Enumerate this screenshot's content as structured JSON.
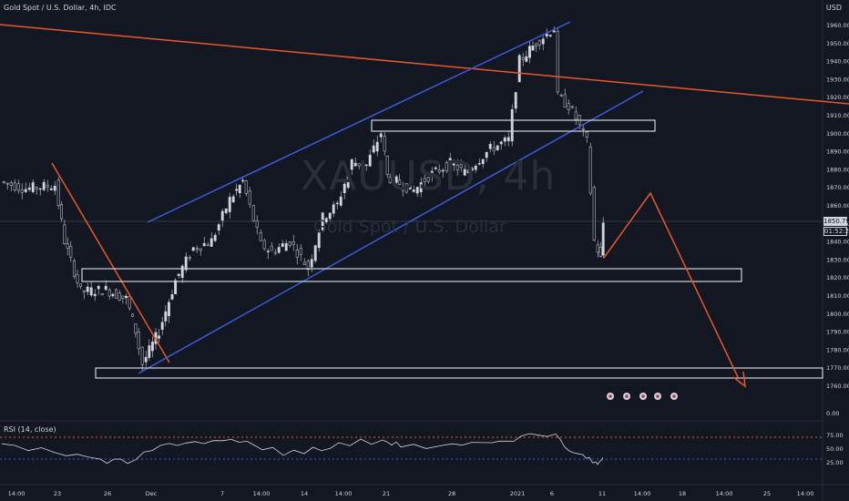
{
  "header": {
    "title": "Gold Spot / U.S. Dollar, 4h, IDC",
    "currency": "USD",
    "rsi_label": "RSI (14, close)"
  },
  "watermark": {
    "symbol": "XAUUSD, 4h",
    "name": "Gold Spot / U.S. Dollar"
  },
  "price_axis": {
    "ticks": [
      "1960.00",
      "1950.00",
      "1940.00",
      "1930.00",
      "1920.00",
      "1910.00",
      "1900.00",
      "1890.00",
      "1880.00",
      "1870.00",
      "1860.00",
      "1850.00",
      "1840.00",
      "1830.00",
      "1820.00",
      "1810.00",
      "1800.00",
      "1790.00",
      "1780.00",
      "1770.00",
      "1760.00"
    ],
    "zero_label": "0.00",
    "current_price": "1850.79",
    "timer": "01:52:23"
  },
  "rsi_axis": {
    "ticks": [
      "75.00",
      "50.00",
      "25.00"
    ]
  },
  "time_axis": {
    "labels": [
      "14:00",
      "23",
      "26",
      "Dec",
      "7",
      "14:00",
      "14",
      "14:00",
      "21",
      "28",
      "2021",
      "6",
      "11",
      "14:00",
      "18",
      "14:00",
      "25",
      "14:00"
    ]
  },
  "colors": {
    "background": "#131722",
    "candle": "#d1d4dc",
    "channel": "#3d5bd9",
    "trendline": "#e8572a",
    "projection": "#e8572a",
    "zone": "#d1d4dc",
    "rsi_line": "#d1d4dc",
    "rsi_overbought": "#e8572a",
    "rsi_oversold": "#3d5bd9"
  },
  "chart_data": {
    "type": "line",
    "title": "Gold Spot / U.S. Dollar, 4h, IDC",
    "ylim": [
      1760,
      1960
    ],
    "series": [
      {
        "name": "Gold Spot / U.S. Dollar",
        "approx_close_path": [
          {
            "x": "Nov 20",
            "y": 1873
          },
          {
            "x": "Nov 22",
            "y": 1869
          },
          {
            "x": "Nov 23",
            "y": 1871
          },
          {
            "x": "Nov 23",
            "y": 1840
          },
          {
            "x": "Nov 24",
            "y": 1812
          },
          {
            "x": "Nov 25",
            "y": 1813
          },
          {
            "x": "Nov 26",
            "y": 1808
          },
          {
            "x": "Nov 27",
            "y": 1790
          },
          {
            "x": "Nov 30",
            "y": 1772
          },
          {
            "x": "Dec 1",
            "y": 1790
          },
          {
            "x": "Dec 2",
            "y": 1818
          },
          {
            "x": "Dec 3",
            "y": 1836
          },
          {
            "x": "Dec 4",
            "y": 1840
          },
          {
            "x": "Dec 7",
            "y": 1863
          },
          {
            "x": "Dec 8",
            "y": 1873
          },
          {
            "x": "Dec 9",
            "y": 1838
          },
          {
            "x": "Dec 10",
            "y": 1834
          },
          {
            "x": "Dec 11",
            "y": 1840
          },
          {
            "x": "Dec 14",
            "y": 1825
          },
          {
            "x": "Dec 15",
            "y": 1853
          },
          {
            "x": "Dec 16",
            "y": 1860
          },
          {
            "x": "Dec 17",
            "y": 1884
          },
          {
            "x": "Dec 18",
            "y": 1882
          },
          {
            "x": "Dec 21",
            "y": 1900
          },
          {
            "x": "Dec 21",
            "y": 1876
          },
          {
            "x": "Dec 22",
            "y": 1872
          },
          {
            "x": "Dec 23",
            "y": 1868
          },
          {
            "x": "Dec 24",
            "y": 1876
          },
          {
            "x": "Dec 28",
            "y": 1883
          },
          {
            "x": "Dec 29",
            "y": 1878
          },
          {
            "x": "Dec 30",
            "y": 1891
          },
          {
            "x": "Dec 31",
            "y": 1896
          },
          {
            "x": "Jan 4",
            "y": 1940
          },
          {
            "x": "Jan 5",
            "y": 1950
          },
          {
            "x": "Jan 6",
            "y": 1958
          },
          {
            "x": "Jan 6",
            "y": 1920
          },
          {
            "x": "Jan 7",
            "y": 1915
          },
          {
            "x": "Jan 7",
            "y": 1908
          },
          {
            "x": "Jan 8",
            "y": 1895
          },
          {
            "x": "Jan 8",
            "y": 1840
          },
          {
            "x": "Jan 11",
            "y": 1830
          },
          {
            "x": "Jan 11",
            "y": 1850
          }
        ]
      },
      {
        "name": "RSI (14, close)",
        "approx_path": [
          {
            "x": "Nov 20",
            "y": 58
          },
          {
            "x": "Nov 24",
            "y": 42
          },
          {
            "x": "Nov 27",
            "y": 30
          },
          {
            "x": "Nov 30",
            "y": 22
          },
          {
            "x": "Dec 2",
            "y": 55
          },
          {
            "x": "Dec 4",
            "y": 62
          },
          {
            "x": "Dec 8",
            "y": 66
          },
          {
            "x": "Dec 9",
            "y": 47
          },
          {
            "x": "Dec 14",
            "y": 40
          },
          {
            "x": "Dec 17",
            "y": 60
          },
          {
            "x": "Dec 21",
            "y": 65
          },
          {
            "x": "Dec 23",
            "y": 52
          },
          {
            "x": "Dec 28",
            "y": 58
          },
          {
            "x": "Dec 31",
            "y": 60
          },
          {
            "x": "Jan 4",
            "y": 72
          },
          {
            "x": "Jan 6",
            "y": 76
          },
          {
            "x": "Jan 7",
            "y": 52
          },
          {
            "x": "Jan 8",
            "y": 38
          },
          {
            "x": "Jan 11",
            "y": 25
          },
          {
            "x": "Jan 11",
            "y": 33
          }
        ],
        "overbought": 70,
        "oversold": 30
      }
    ],
    "annotations": {
      "rising_channel": "blue parallel lines from Nov 30 to Jan 8",
      "descending_trendline": "orange line from upper left sloping down to the right",
      "support_zones": [
        "1825",
        "1900",
        "1765"
      ],
      "projection": "orange path: rise to 1867, then drop to 1760 target"
    }
  }
}
